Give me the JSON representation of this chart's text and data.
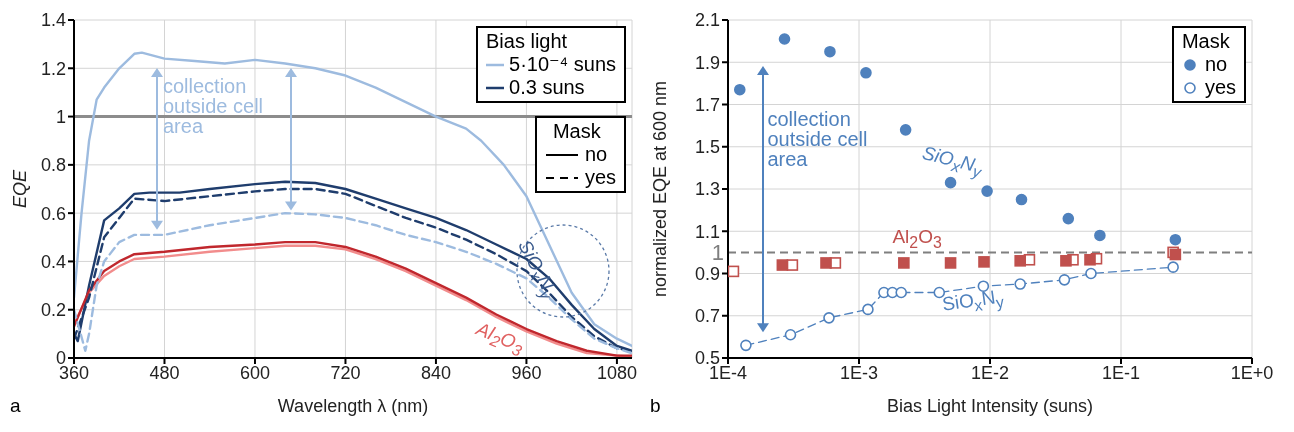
{
  "chart_data": [
    {
      "type": "line",
      "xlabel": "Wavelength λ (nm)",
      "ylabel": "EQE",
      "legend_title": "Bias light",
      "legend": "top right",
      "grid": true,
      "marker": "none",
      "xlim": [
        360,
        1100
      ],
      "xticks": [
        360,
        480,
        600,
        720,
        840,
        960,
        1080
      ],
      "ylim": [
        0,
        1.4
      ],
      "yticks": [
        0,
        0.2,
        0.4,
        0.6,
        0.8,
        1,
        1.2,
        1.4
      ],
      "ref_lines": [
        {
          "axis": "y",
          "value": 1,
          "color": "#8c8c8c",
          "line_style": "solid"
        }
      ],
      "annotations": [
        "collection outside cell area",
        "SiO$_{x}$N$_{y}$",
        "Al$_{2}$O$_{3}$",
        "Mask",
        "no",
        "yes",
        "a"
      ],
      "series": [
        {
          "name": "5·10⁻⁴ suns",
          "color": "#9dbbdf",
          "line_style": "solid",
          "x": [
            360,
            370,
            380,
            390,
            400,
            420,
            440,
            450,
            480,
            520,
            560,
            600,
            640,
            680,
            720,
            760,
            800,
            840,
            880,
            900,
            930,
            960,
            990,
            1020,
            1050,
            1080,
            1100
          ],
          "values": [
            0.25,
            0.6,
            0.9,
            1.07,
            1.12,
            1.2,
            1.26,
            1.265,
            1.24,
            1.23,
            1.22,
            1.235,
            1.22,
            1.2,
            1.17,
            1.12,
            1.06,
            1,
            0.95,
            0.9,
            0.8,
            0.67,
            0.47,
            0.27,
            0.14,
            0.08,
            0.05
          ]
        },
        {
          "color": "#f28c8c",
          "line_style": "solid",
          "x": [
            360,
            380,
            400,
            420,
            440,
            480,
            540,
            600,
            640,
            680,
            720,
            760,
            800,
            840,
            880,
            920,
            960,
            1000,
            1040,
            1080,
            1100
          ],
          "values": [
            0.14,
            0.27,
            0.34,
            0.38,
            0.41,
            0.42,
            0.44,
            0.455,
            0.465,
            0.465,
            0.45,
            0.41,
            0.36,
            0.3,
            0.24,
            0.17,
            0.11,
            0.06,
            0.02,
            0.01,
            0.005
          ]
        },
        {
          "name": "0.3 suns",
          "color": "#1f3d6d",
          "line_style": "solid",
          "x": [
            360,
            365,
            380,
            400,
            420,
            440,
            460,
            500,
            540,
            600,
            640,
            680,
            720,
            760,
            800,
            840,
            880,
            920,
            960,
            990,
            1020,
            1050,
            1080,
            1100
          ],
          "values": [
            0.1,
            0.07,
            0.3,
            0.57,
            0.62,
            0.68,
            0.685,
            0.685,
            0.7,
            0.72,
            0.73,
            0.725,
            0.7,
            0.66,
            0.62,
            0.58,
            0.53,
            0.47,
            0.41,
            0.33,
            0.22,
            0.12,
            0.05,
            0.03
          ]
        },
        {
          "color": "#c0272d",
          "line_style": "solid",
          "x": [
            360,
            380,
            400,
            420,
            440,
            480,
            540,
            600,
            640,
            680,
            720,
            760,
            800,
            840,
            880,
            920,
            960,
            1000,
            1040,
            1080,
            1100
          ],
          "values": [
            0.13,
            0.28,
            0.36,
            0.4,
            0.43,
            0.44,
            0.46,
            0.47,
            0.48,
            0.48,
            0.46,
            0.42,
            0.37,
            0.31,
            0.25,
            0.18,
            0.12,
            0.07,
            0.03,
            0.01,
            0.01
          ]
        },
        {
          "color": "#1f3d6d",
          "line_style": "dashed",
          "x": [
            360,
            380,
            400,
            420,
            440,
            480,
            540,
            600,
            640,
            680,
            720,
            760,
            800,
            840,
            880,
            920,
            960,
            990,
            1020,
            1050,
            1080,
            1100
          ],
          "values": [
            0.08,
            0.25,
            0.5,
            0.58,
            0.66,
            0.65,
            0.67,
            0.69,
            0.7,
            0.7,
            0.68,
            0.63,
            0.58,
            0.54,
            0.49,
            0.43,
            0.36,
            0.27,
            0.17,
            0.09,
            0.04,
            0.03
          ]
        },
        {
          "color": "#9dbbdf",
          "line_style": "dashed",
          "x": [
            360,
            375,
            380,
            390,
            400,
            420,
            440,
            480,
            540,
            600,
            640,
            680,
            720,
            760,
            800,
            840,
            880,
            920,
            960,
            990,
            1020,
            1050,
            1080,
            1100
          ],
          "values": [
            0.2,
            0.03,
            0.1,
            0.3,
            0.4,
            0.48,
            0.51,
            0.51,
            0.55,
            0.58,
            0.6,
            0.595,
            0.58,
            0.55,
            0.51,
            0.48,
            0.44,
            0.39,
            0.33,
            0.25,
            0.16,
            0.08,
            0.04,
            0.02
          ]
        }
      ]
    },
    {
      "type": "scatter",
      "xlabel": "Bias Light Intensity (suns)",
      "ylabel": "normalized EQE at 600 nm",
      "legend_title": "Mask",
      "legend": "top right",
      "grid": true,
      "log": "x",
      "xlim": [
        0.0001,
        1
      ],
      "xticks": [
        {
          "value": 0.0001,
          "label": "1E-4"
        },
        {
          "value": 0.001,
          "label": "1E-3"
        },
        {
          "value": 0.01,
          "label": "1E-2"
        },
        {
          "value": 0.1,
          "label": "1E-1"
        },
        {
          "value": 1,
          "label": "1E+0"
        }
      ],
      "ylim": [
        0.5,
        2.1
      ],
      "yticks": [
        0.5,
        0.7,
        0.9,
        1.1,
        1.3,
        1.5,
        1.7,
        1.9,
        2.1
      ],
      "ref_lines": [
        {
          "axis": "y",
          "value": 1,
          "label": "1",
          "color": "#7f7f7f",
          "line_style": "dashed"
        }
      ],
      "annotations": [
        "collection outside cell area",
        "SiO$_{x}$N$_{y}$",
        "Al$_{2}$O$_{3}$",
        "SiO$_{x}$N$_{y}$",
        "b"
      ],
      "series": [
        {
          "name": "no",
          "color": "#4f81bd",
          "marker": "circle",
          "x": [
            0.000123,
            0.00027,
            0.0006,
            0.00113,
            0.00227,
            0.005,
            0.0095,
            0.0174,
            0.0396,
            0.069,
            0.26
          ],
          "values": [
            1.77,
            2.01,
            1.95,
            1.85,
            1.58,
            1.33,
            1.29,
            1.25,
            1.16,
            1.08,
            1.06
          ]
        },
        {
          "name": "yes",
          "type": "line",
          "color": "#4f81bd",
          "marker": "circle",
          "line_style": "dashed",
          "x": [
            0.000137,
            0.0003,
            0.00059,
            0.00117,
            0.00155,
            0.0018,
            0.0021,
            0.0041,
            0.0089,
            0.017,
            0.037,
            0.059,
            0.25
          ],
          "values": [
            0.56,
            0.61,
            0.69,
            0.73,
            0.81,
            0.81,
            0.81,
            0.81,
            0.84,
            0.85,
            0.87,
            0.9,
            0.93
          ]
        },
        {
          "color": "#c0504d",
          "marker": "square",
          "x": [
            0.00011,
            0.00031,
            0.00066,
            0.02,
            0.043,
            0.065,
            0.25
          ],
          "values": [
            0.91,
            0.94,
            0.95,
            0.965,
            0.965,
            0.97,
            1
          ]
        },
        {
          "color": "#c0504d",
          "marker": "square",
          "x": [
            0.00026,
            0.00056,
            0.0022,
            0.005,
            0.009,
            0.017,
            0.038,
            0.058,
            0.26
          ],
          "values": [
            0.94,
            0.95,
            0.95,
            0.95,
            0.955,
            0.96,
            0.96,
            0.965,
            0.99
          ]
        }
      ]
    }
  ]
}
